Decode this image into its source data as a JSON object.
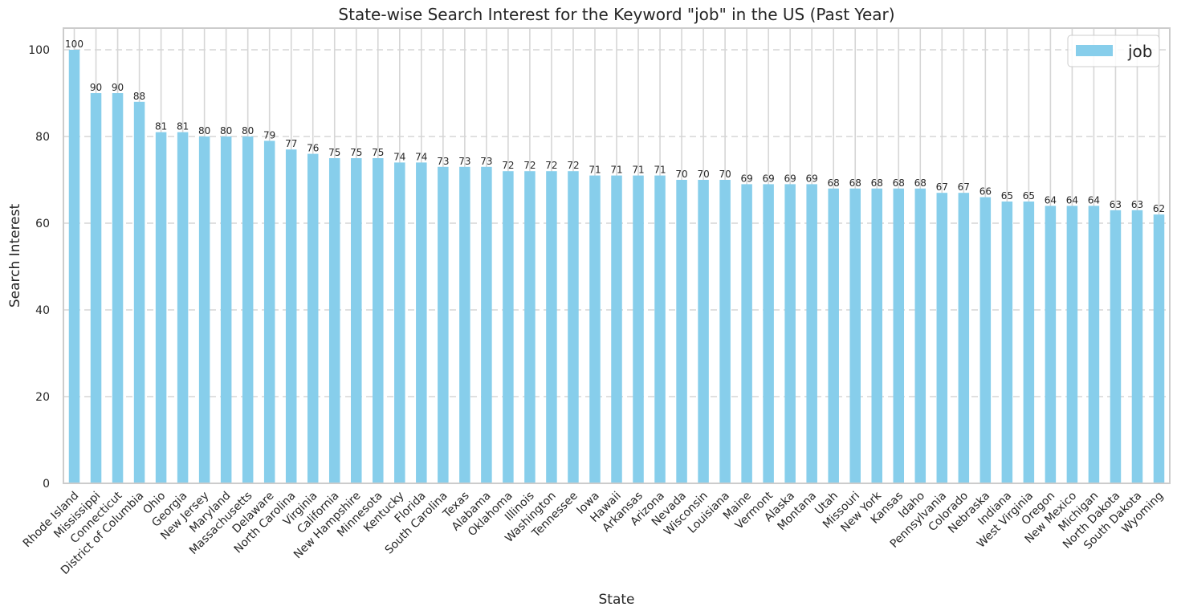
{
  "chart_data": {
    "type": "bar",
    "title": "State-wise Search Interest for the Keyword \"job\" in the US (Past Year)",
    "xlabel": "State",
    "ylabel": "Search Interest",
    "ylim": [
      0,
      105
    ],
    "yticks": [
      0,
      20,
      40,
      60,
      80,
      100
    ],
    "grid": true,
    "legend_position": "top-right",
    "bar_color": "#87ceeb",
    "categories": [
      "Rhode Island",
      "Mississippi",
      "Connecticut",
      "District of Columbia",
      "Ohio",
      "Georgia",
      "New Jersey",
      "Maryland",
      "Massachusetts",
      "Delaware",
      "North Carolina",
      "Virginia",
      "California",
      "New Hampshire",
      "Minnesota",
      "Kentucky",
      "Florida",
      "South Carolina",
      "Texas",
      "Alabama",
      "Oklahoma",
      "Illinois",
      "Washington",
      "Tennessee",
      "Iowa",
      "Hawaii",
      "Arkansas",
      "Arizona",
      "Nevada",
      "Wisconsin",
      "Louisiana",
      "Maine",
      "Vermont",
      "Alaska",
      "Montana",
      "Utah",
      "Missouri",
      "New York",
      "Kansas",
      "Idaho",
      "Pennsylvania",
      "Colorado",
      "Nebraska",
      "Indiana",
      "West Virginia",
      "Oregon",
      "New Mexico",
      "Michigan",
      "North Dakota",
      "South Dakota",
      "Wyoming"
    ],
    "series": [
      {
        "name": "job",
        "values": [
          100,
          90,
          90,
          88,
          81,
          81,
          80,
          80,
          80,
          79,
          77,
          76,
          75,
          75,
          75,
          74,
          74,
          73,
          73,
          73,
          72,
          72,
          72,
          72,
          71,
          71,
          71,
          71,
          70,
          70,
          70,
          69,
          69,
          69,
          69,
          68,
          68,
          68,
          68,
          68,
          67,
          67,
          66,
          65,
          65,
          64,
          64,
          64,
          63,
          63,
          62
        ]
      }
    ]
  }
}
